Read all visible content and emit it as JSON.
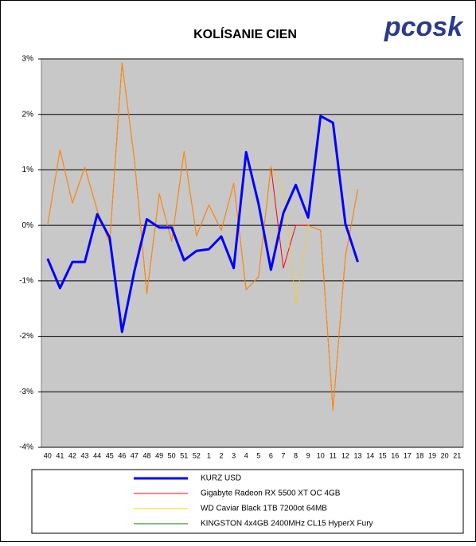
{
  "logo": "pcosk",
  "chart_data": {
    "type": "line",
    "title": "KOLÍSANIE CIEN",
    "categories": [
      "40",
      "41",
      "42",
      "43",
      "44",
      "45",
      "46",
      "47",
      "48",
      "49",
      "50",
      "51",
      "52",
      "1",
      "2",
      "3",
      "4",
      "5",
      "6",
      "7",
      "8",
      "9",
      "10",
      "11",
      "12",
      "13",
      "14",
      "15",
      "16",
      "17",
      "18",
      "19",
      "20",
      "21"
    ],
    "ylim": [
      -4,
      3
    ],
    "yticks": [
      {
        "value": -4,
        "label": "-4%"
      },
      {
        "value": -3,
        "label": "-3%"
      },
      {
        "value": -2,
        "label": "-2%"
      },
      {
        "value": -1,
        "label": "-1%"
      },
      {
        "value": 0,
        "label": "0%"
      },
      {
        "value": 1,
        "label": "1%"
      },
      {
        "value": 2,
        "label": "2%"
      },
      {
        "value": 3,
        "label": "3%"
      }
    ],
    "grid": true,
    "series": [
      {
        "name": "KURZ USD",
        "color": "#0000ff",
        "values": [
          -0.6,
          -1.13,
          -0.66,
          -0.66,
          0.2,
          -0.22,
          -1.92,
          -0.82,
          0.11,
          -0.04,
          -0.04,
          -0.63,
          -0.46,
          -0.43,
          -0.2,
          -0.77,
          1.32,
          0.39,
          -0.8,
          0.22,
          0.73,
          0.14,
          1.97,
          1.85,
          0.03,
          -0.66,
          null,
          null,
          null,
          null,
          null,
          null,
          null,
          null
        ]
      },
      {
        "name": "Gigabyte Radeon RX 5500 XT OC 4GB",
        "color": "#ff0000",
        "values": [
          0,
          1.36,
          0.4,
          1.05,
          0.27,
          -0.32,
          2.93,
          1.18,
          -1.23,
          0.57,
          -0.29,
          1.33,
          -0.19,
          0.37,
          -0.09,
          0.76,
          -1.16,
          -0.93,
          1.06,
          -0.77,
          0,
          0,
          -0.09,
          -3.33,
          -0.56,
          0.65,
          null,
          null,
          null,
          null,
          null,
          null,
          null,
          null
        ]
      },
      {
        "name": "WD Caviar Black 1TB 7200ot 64MB",
        "color": "#ffcc00",
        "values": [
          0,
          1.36,
          0.4,
          1.05,
          0.27,
          -0.32,
          2.93,
          1.18,
          -1.23,
          0.57,
          -0.29,
          1.33,
          -0.19,
          0.37,
          -0.09,
          0.76,
          -1.16,
          -0.93,
          1.06,
          0.67,
          -1.43,
          0,
          -0.09,
          -3.33,
          -0.56,
          0.65,
          null,
          null,
          null,
          null,
          null,
          null,
          null,
          null
        ]
      },
      {
        "name": "KINGSTON 4x4GB 2400MHz CL15 HyperX Fury",
        "color": "#008000",
        "values": [
          null,
          null,
          null,
          null,
          null,
          null,
          null,
          null,
          null,
          null,
          null,
          null,
          null,
          null,
          null,
          null,
          null,
          null,
          null,
          null,
          null,
          null,
          null,
          null,
          null,
          null,
          null,
          null,
          null,
          null,
          null,
          null,
          null,
          null
        ]
      }
    ]
  }
}
